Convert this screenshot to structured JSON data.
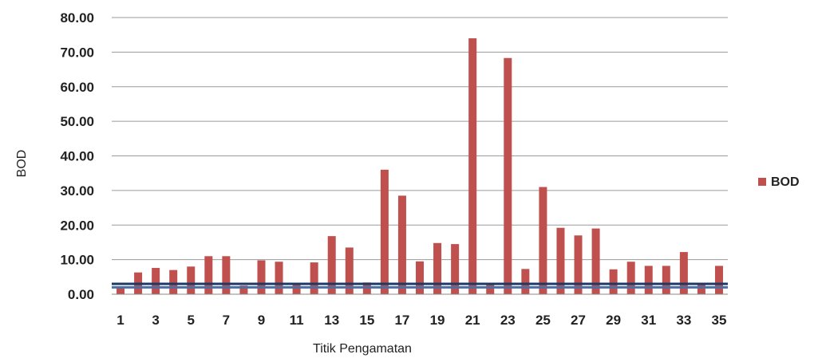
{
  "chart_data": {
    "type": "bar",
    "title": "",
    "xlabel": "Titik Pengamatan",
    "ylabel": "BOD",
    "ylim": [
      0,
      80
    ],
    "yticks": [
      "0.00",
      "10.00",
      "20.00",
      "30.00",
      "40.00",
      "50.00",
      "60.00",
      "70.00",
      "80.00"
    ],
    "categories": [
      "1",
      "2",
      "3",
      "4",
      "5",
      "6",
      "7",
      "8",
      "9",
      "10",
      "11",
      "12",
      "13",
      "14",
      "15",
      "16",
      "17",
      "18",
      "19",
      "20",
      "21",
      "22",
      "23",
      "24",
      "25",
      "26",
      "27",
      "28",
      "29",
      "30",
      "31",
      "32",
      "33",
      "34",
      "35"
    ],
    "x_tick_labels": [
      "1",
      "3",
      "5",
      "7",
      "9",
      "11",
      "13",
      "15",
      "17",
      "19",
      "21",
      "23",
      "25",
      "27",
      "29",
      "31",
      "33",
      "35"
    ],
    "series": [
      {
        "name": "BOD",
        "color": "#c0504d",
        "values": [
          2.0,
          6.3,
          7.6,
          7.0,
          8.0,
          11.0,
          11.0,
          2.5,
          9.8,
          9.4,
          3.2,
          9.2,
          16.8,
          13.5,
          3.4,
          36.0,
          28.5,
          9.5,
          14.8,
          14.5,
          74.0,
          3.2,
          68.3,
          7.3,
          31.0,
          19.2,
          17.0,
          19.0,
          7.2,
          9.4,
          8.2,
          8.2,
          12.2,
          3.2,
          8.2
        ]
      }
    ],
    "reference_lines": [
      {
        "value": 2.0,
        "color": "#4a6fa5"
      },
      {
        "value": 3.0,
        "color": "#1f3864"
      }
    ],
    "grid": true,
    "legend_position": "right"
  }
}
